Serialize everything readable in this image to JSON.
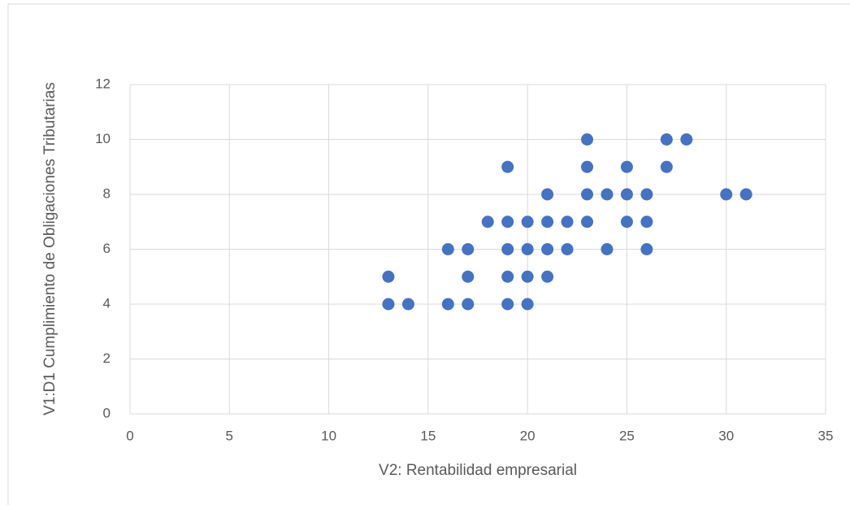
{
  "chart_data": {
    "type": "scatter",
    "x_label": "V2: Rentabilidad empresarial",
    "y_label": "V1:D1 Cumplimiento de Obligaciones Tributarias",
    "color": "#4472c4",
    "x": [
      13,
      13,
      14,
      16,
      16,
      17,
      17,
      17,
      18,
      19,
      19,
      19,
      19,
      19,
      20,
      20,
      20,
      20,
      21,
      21,
      21,
      21,
      22,
      22,
      23,
      23,
      23,
      23,
      24,
      24,
      25,
      25,
      25,
      26,
      26,
      26,
      27,
      27,
      28,
      30,
      31
    ],
    "values": [
      5,
      4,
      4,
      6,
      4,
      6,
      5,
      4,
      7,
      9,
      7,
      6,
      5,
      4,
      7,
      6,
      5,
      4,
      8,
      7,
      6,
      5,
      7,
      6,
      10,
      9,
      8,
      7,
      8,
      6,
      9,
      8,
      7,
      8,
      7,
      6,
      10,
      9,
      10,
      8,
      8
    ],
    "xlim": [
      0,
      35
    ],
    "xticks": [
      0,
      5,
      10,
      15,
      20,
      25,
      30,
      35
    ],
    "ylim": [
      0,
      12
    ],
    "yticks": [
      0,
      2,
      4,
      6,
      8,
      10,
      12
    ],
    "grid": true
  }
}
